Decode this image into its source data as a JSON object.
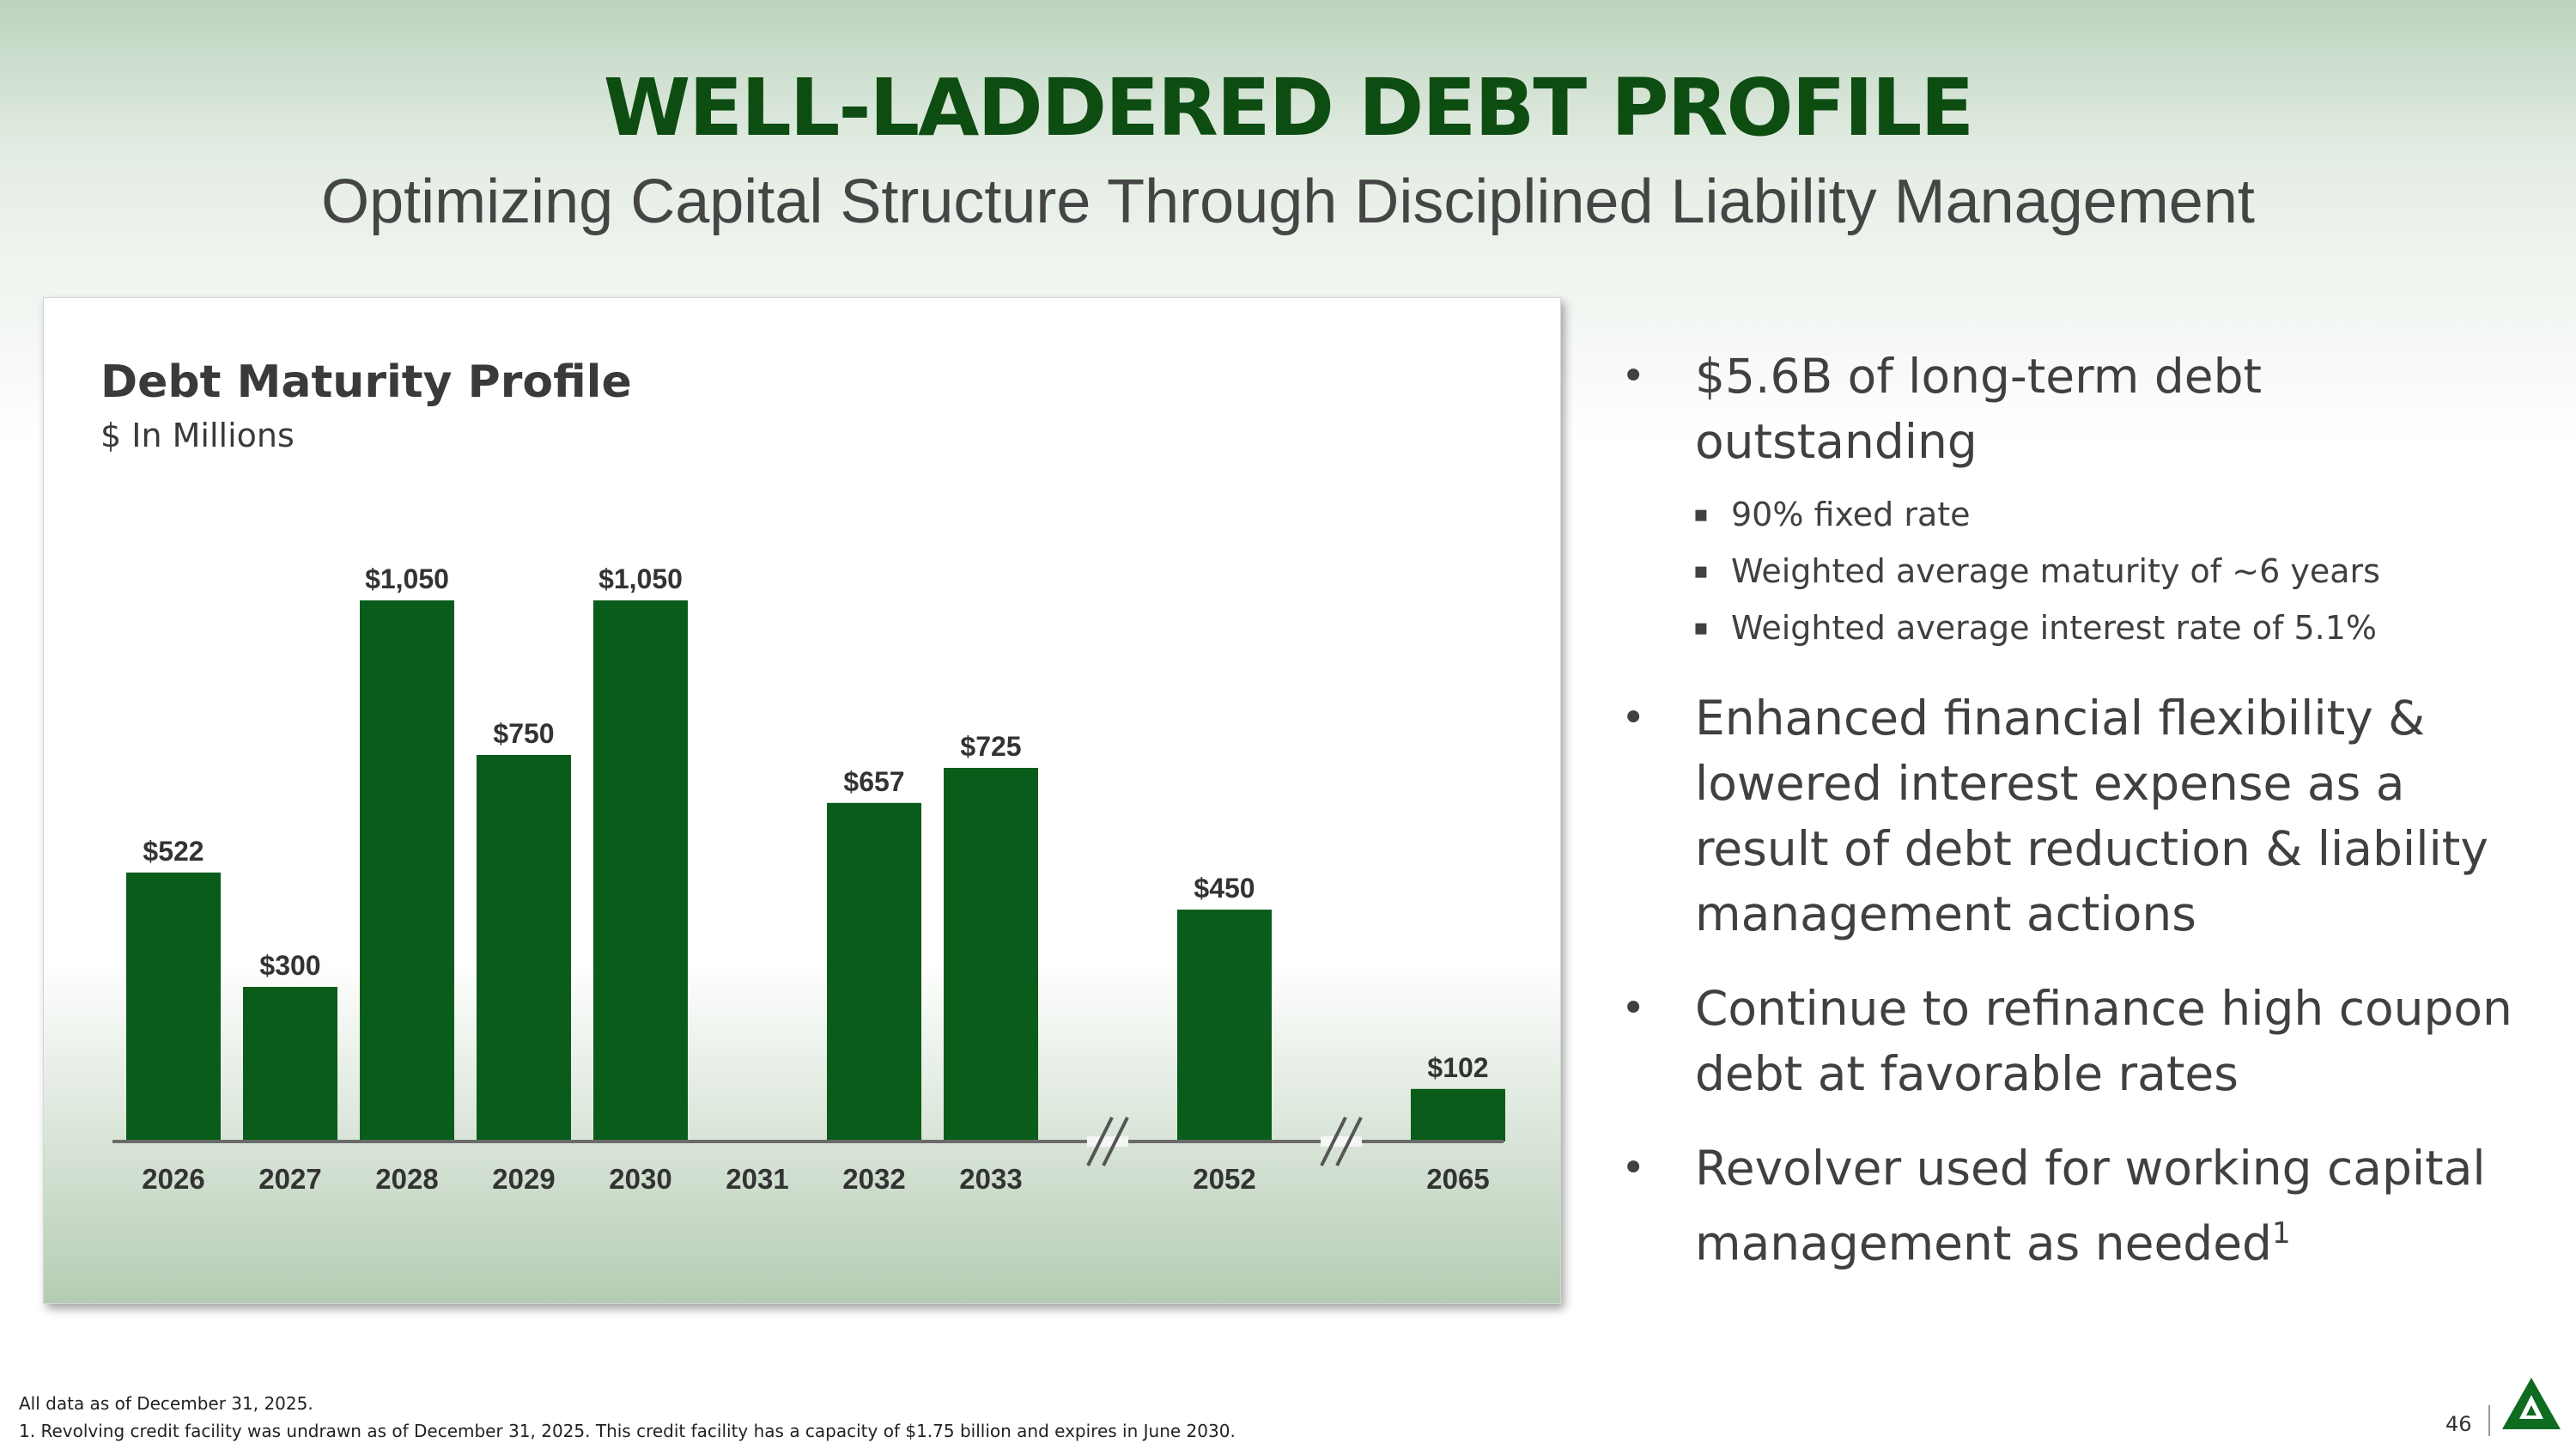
{
  "slide": {
    "title": "WELL-LADDERED DEBT PROFILE",
    "subtitle": "Optimizing Capital Structure Through Disciplined Liability Management",
    "page_number": "46"
  },
  "chart_data": {
    "type": "bar",
    "title": "Debt Maturity Profile",
    "subtitle": "$ In Millions",
    "categories": [
      "2026",
      "2027",
      "2028",
      "2029",
      "2030",
      "2031",
      "2032",
      "2033",
      "2052",
      "2065"
    ],
    "values": [
      522,
      300,
      1050,
      750,
      1050,
      null,
      657,
      725,
      450,
      102
    ],
    "data_labels": [
      "$522",
      "$300",
      "$1,050",
      "$750",
      "$1,050",
      "",
      "$657",
      "$725",
      "$450",
      "$102"
    ],
    "axis_breaks_after": [
      "2033",
      "2052"
    ],
    "ylim": [
      0,
      1050
    ],
    "grid": false,
    "legend": "none",
    "bar_color": "#0a5c1b"
  },
  "bullets": [
    {
      "text": "$5.6B of long-term debt outstanding",
      "sub": [
        "90% fixed rate",
        "Weighted average maturity of ~6 years",
        "Weighted average interest rate of 5.1%"
      ]
    },
    {
      "text": "Enhanced financial flexibility & lowered interest expense as a result of debt reduction & liability management actions"
    },
    {
      "text": "Continue to refinance high coupon debt at favorable rates"
    },
    {
      "text": "Revolver used for working capital management as needed",
      "sup": "1"
    }
  ],
  "footnotes": [
    "All data as of December 31, 2025.",
    "1. Revolving credit facility was undrawn as of December 31, 2025. This credit facility has a capacity of $1.75 billion and expires in June 2030."
  ],
  "colors": {
    "title": "#0e4d12",
    "bar": "#0a5c1b",
    "logo": "#0e6b1f"
  },
  "logo_icon": "company-triangle-logo-icon"
}
